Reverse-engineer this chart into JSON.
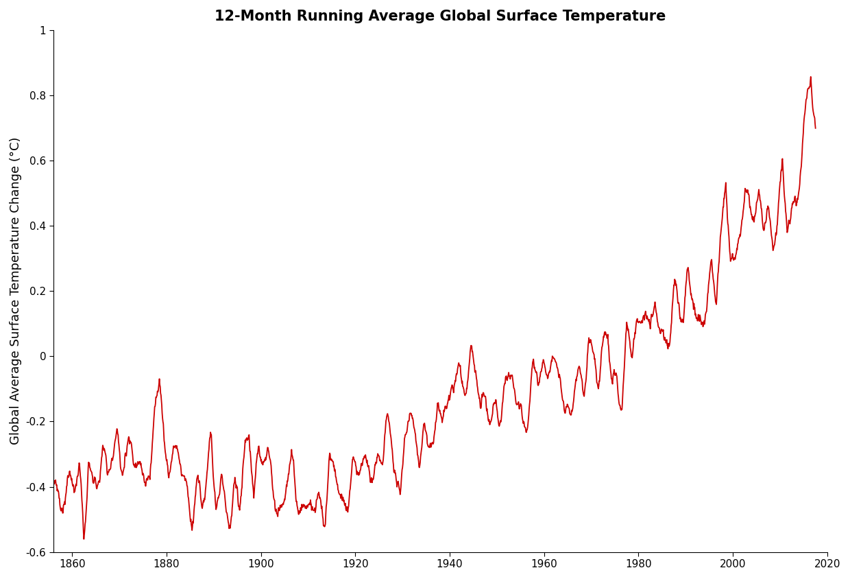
{
  "title": "12-Month Running Average Global Surface Temperature",
  "ylabel": "Global Average Surface Temperature Change (°C)",
  "xlim": [
    1856,
    2020
  ],
  "ylim": [
    -0.6,
    1.0
  ],
  "xticks": [
    1860,
    1880,
    1900,
    1920,
    1940,
    1960,
    1980,
    2000,
    2020
  ],
  "yticks": [
    -0.6,
    -0.4,
    -0.2,
    0,
    0.2,
    0.4,
    0.6,
    0.8,
    1
  ],
  "ytick_labels": [
    "-0.6",
    "-0.4",
    "-0.2",
    "0",
    "0.2",
    "0.4",
    "0.6",
    "0.8",
    "1"
  ],
  "line_color": "#cc0000",
  "line_width": 1.3,
  "background_color": "#ffffff",
  "title_fontsize": 15,
  "label_fontsize": 13,
  "tick_fontsize": 11
}
